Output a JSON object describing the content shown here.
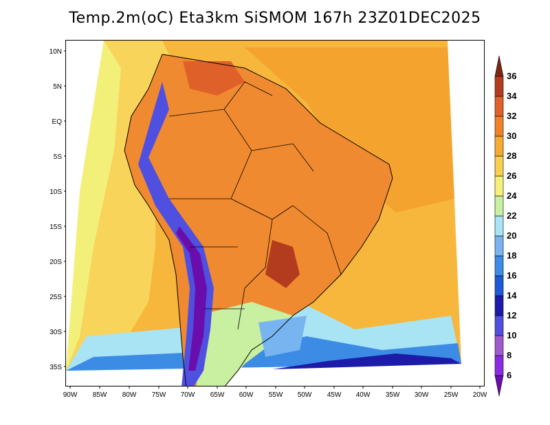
{
  "title": "Temp.2m(oC) Eta3km SiSMOM 167h 23Z01DEC2025",
  "map": {
    "y_ticks": [
      "10N",
      "5N",
      "EQ",
      "5S",
      "10S",
      "15S",
      "20S",
      "25S",
      "30S",
      "35S"
    ],
    "x_ticks": [
      "90W",
      "85W",
      "80W",
      "75W",
      "70W",
      "65W",
      "60W",
      "55W",
      "50W",
      "45W",
      "40W",
      "35W",
      "30W",
      "25W",
      "20W"
    ]
  },
  "colorbar": {
    "labels": [
      "6",
      "8",
      "10",
      "12",
      "14",
      "16",
      "18",
      "20",
      "22",
      "24",
      "26",
      "28",
      "30",
      "32",
      "34",
      "36"
    ],
    "colors": [
      "#6a0dad",
      "#8a2be2",
      "#a05ad0",
      "#5050e0",
      "#1c1ca8",
      "#1e5ad8",
      "#3c8ce6",
      "#78b4f0",
      "#a8e4f4",
      "#c8f0a0",
      "#f5f07a",
      "#f8d050",
      "#f5aa32",
      "#f08228",
      "#e0602a",
      "#b43c1e",
      "#7a2814"
    ]
  }
}
